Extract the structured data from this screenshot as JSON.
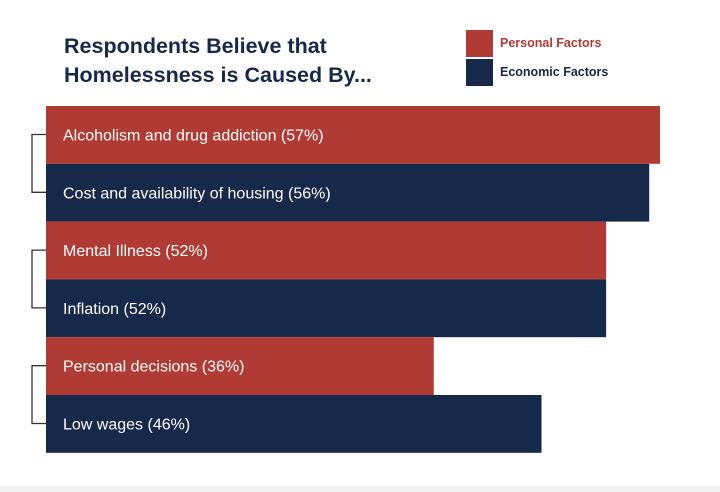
{
  "chart_data": {
    "type": "bar",
    "orientation": "horizontal",
    "title": "Respondents Believe that Homelessness is Caused By...",
    "title_lines": [
      "Respondents Believe that",
      "Homelessness is Caused By..."
    ],
    "categories": [
      "Alcoholism and drug addiction (57%)",
      "Cost and availability of housing (56%)",
      "Mental Illness (52%)",
      "Inflation (52%)",
      "Personal decisions (36%)",
      "Low wages (46%)"
    ],
    "values": [
      57,
      56,
      52,
      52,
      36,
      46
    ],
    "series_membership": [
      "Personal Factors",
      "Economic Factors",
      "Personal Factors",
      "Economic Factors",
      "Personal Factors",
      "Economic Factors"
    ],
    "legend": [
      {
        "name": "Personal Factors",
        "color": "#b03a34"
      },
      {
        "name": "Economic Factors",
        "color": "#16294a"
      }
    ],
    "legend_position": "top-right",
    "xlim": [
      0,
      57
    ],
    "grid": false,
    "xlabel": "",
    "ylabel": ""
  },
  "colors": {
    "personal": "#b03a34",
    "economic": "#16294a",
    "title": "#16294a",
    "bar_text": "#ffffff",
    "bracket": "#333333"
  }
}
